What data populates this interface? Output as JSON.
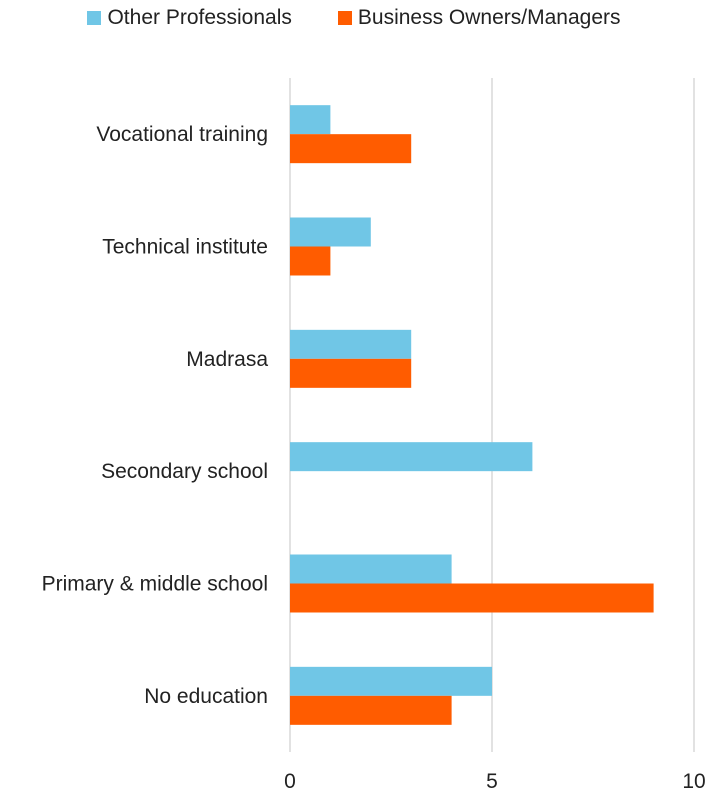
{
  "chart_data": {
    "type": "bar",
    "orientation": "horizontal",
    "categories": [
      "Vocational training",
      "Technical institute",
      "Madrasa",
      "Secondary school",
      "Primary & middle school",
      "No education"
    ],
    "series": [
      {
        "name": "Other Professionals",
        "color": "#70C6E6",
        "values": [
          1,
          2,
          3,
          6,
          4,
          5
        ]
      },
      {
        "name": "Business Owners/Managers",
        "color": "#FF5C00",
        "values": [
          3,
          1,
          3,
          0,
          9,
          4
        ]
      }
    ],
    "xlim": [
      0,
      10
    ],
    "xticks": [
      "0",
      "5",
      "10"
    ],
    "grid": true,
    "legend_position": "top"
  }
}
